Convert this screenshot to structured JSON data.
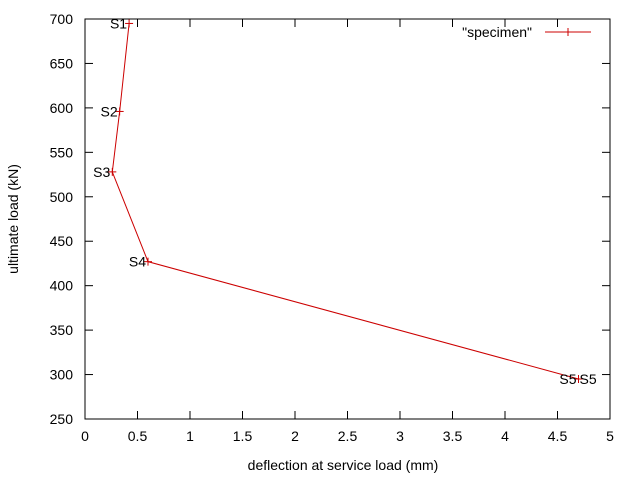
{
  "chart_data": {
    "type": "line",
    "xlabel": "deflection at service load (mm)",
    "ylabel": "ultimate load (kN)",
    "xlim": [
      0,
      5
    ],
    "ylim": [
      250,
      700
    ],
    "x_ticks": [
      "0",
      "0.5",
      "1",
      "1.5",
      "2",
      "2.5",
      "3",
      "3.5",
      "4",
      "4.5",
      "5"
    ],
    "y_ticks": [
      "250",
      "300",
      "350",
      "400",
      "450",
      "500",
      "550",
      "600",
      "650",
      "700"
    ],
    "grid": false,
    "legend_position": "top-right",
    "series": [
      {
        "name": "\"specimen\"",
        "color": "#cc0000",
        "marker": "plus",
        "points": [
          {
            "x": 0.42,
            "y": 695,
            "label": "S1"
          },
          {
            "x": 0.33,
            "y": 596,
            "label": "S2"
          },
          {
            "x": 0.26,
            "y": 528,
            "label": "S3"
          },
          {
            "x": 0.6,
            "y": 427,
            "label": "S4"
          },
          {
            "x": 4.7,
            "y": 295,
            "label": "S5"
          }
        ]
      }
    ],
    "annotations": [
      {
        "text": "S5",
        "x": 4.7,
        "y": 295
      }
    ]
  }
}
